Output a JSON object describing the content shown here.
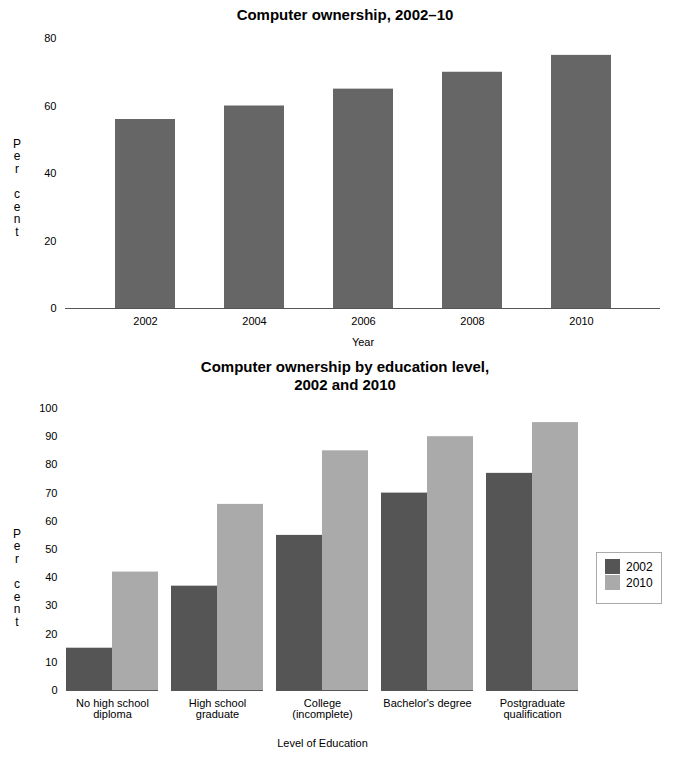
{
  "chart_data": [
    {
      "type": "bar",
      "title": "Computer ownership, 2002–10",
      "categories": [
        "2002",
        "2004",
        "2006",
        "2008",
        "2010"
      ],
      "values": [
        56,
        60,
        65,
        70,
        75
      ],
      "color": "#666666",
      "xlabel": "Year",
      "ylabel": "P\ne\nr\n \nc\ne\nn\nt",
      "ylim": [
        0,
        80
      ],
      "yticks": [
        0,
        20,
        40,
        60,
        80
      ],
      "grid": false
    },
    {
      "type": "bar",
      "title": "Computer ownership by education level,\n2002 and 2010",
      "categories": [
        "No high school\ndiploma",
        "High school\ngraduate",
        "College\n(incomplete)",
        "Bachelor's degree",
        "Postgraduate\nqualification"
      ],
      "series": [
        {
          "name": "2002",
          "color": "#555555",
          "values": [
            15,
            37,
            55,
            70,
            77
          ]
        },
        {
          "name": "2010",
          "color": "#aaaaaa",
          "values": [
            42,
            66,
            85,
            90,
            95
          ]
        }
      ],
      "xlabel": "Level of Education",
      "ylabel": "P\ne\nr\n \nc\ne\nn\nt",
      "ylim": [
        0,
        100
      ],
      "yticks": [
        0,
        10,
        20,
        30,
        40,
        50,
        60,
        70,
        80,
        90,
        100
      ],
      "grid": false,
      "legend": "right"
    }
  ]
}
